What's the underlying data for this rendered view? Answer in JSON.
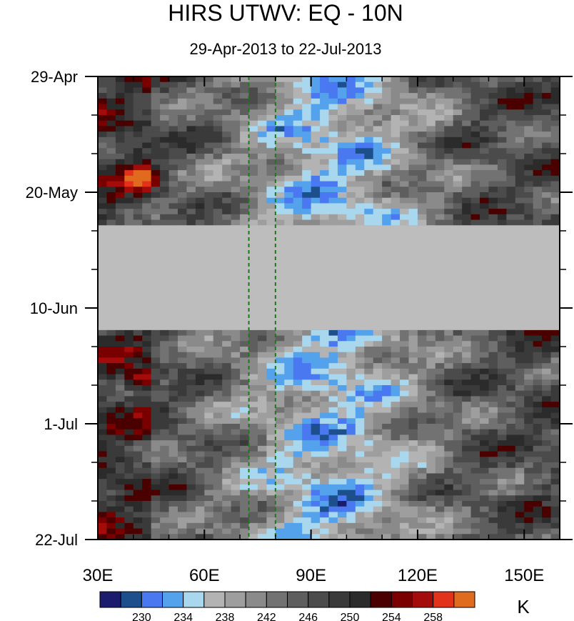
{
  "chart_data": {
    "type": "heatmap",
    "title": "HIRS UTWV: EQ - 10N",
    "subtitle": "29-Apr-2013 to 22-Jul-2013",
    "x_ticks": [
      {
        "value": 30,
        "label": "30E"
      },
      {
        "value": 60,
        "label": "60E"
      },
      {
        "value": 90,
        "label": "90E"
      },
      {
        "value": 120,
        "label": "120E"
      },
      {
        "value": 150,
        "label": "150E"
      }
    ],
    "xlim": [
      30,
      160
    ],
    "y_ticks": [
      {
        "value": 0,
        "label": "29-Apr"
      },
      {
        "value": 21,
        "label": "20-May"
      },
      {
        "value": 42,
        "label": "10-Jun"
      },
      {
        "value": 63,
        "label": "1-Jul"
      },
      {
        "value": 84,
        "label": "22-Jul"
      }
    ],
    "ylim_days": [
      0,
      84
    ],
    "missing_band_days": [
      27,
      46
    ],
    "reference_lines_lon": [
      72.5,
      80
    ],
    "colorbar": {
      "unit": "K",
      "levels": [
        228,
        230,
        232,
        234,
        236,
        238,
        240,
        242,
        244,
        246,
        248,
        250,
        252,
        254,
        256,
        258,
        260
      ],
      "labels": [
        "230",
        "234",
        "238",
        "242",
        "246",
        "250",
        "254",
        "258"
      ],
      "colors": [
        "#1c1c6e",
        "#1d4f8c",
        "#4a78f0",
        "#55a2ec",
        "#a8d7ee",
        "#b3b3b3",
        "#9e9e9e",
        "#8a8a8a",
        "#727272",
        "#5e5e5e",
        "#4b4b4b",
        "#3a3a3a",
        "#2b2b2b",
        "#4b0000",
        "#7a0000",
        "#a40b0b",
        "#e3321b",
        "#e06a1e"
      ]
    }
  }
}
